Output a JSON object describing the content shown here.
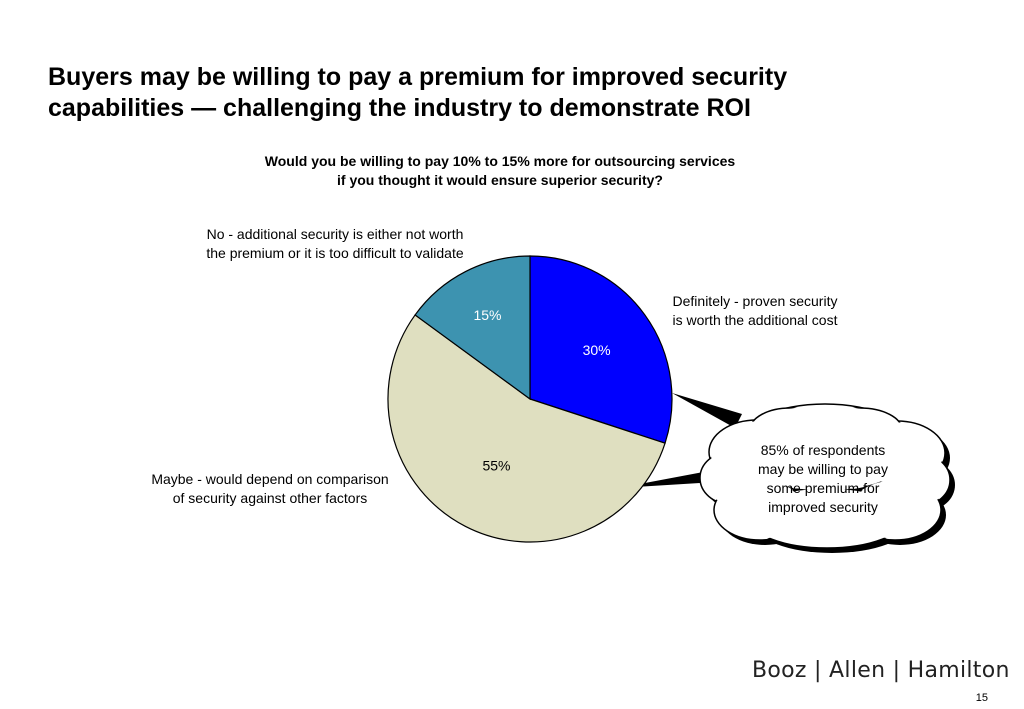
{
  "slide": {
    "title_lines": [
      "Buyers may be willing to pay a premium for improved security",
      "capabilities — challenging the industry to demonstrate ROI"
    ],
    "page_number": "15",
    "logo_text": "Booz | Allen | Hamilton"
  },
  "callout": {
    "lines": [
      "85% of respondents",
      "may be willing to pay",
      "some premium for",
      "improved security"
    ]
  },
  "chart_data": {
    "type": "pie",
    "title_lines": [
      "Would you be willing to pay 10% to 15% more for outsourcing services",
      "if you thought it would ensure superior security?"
    ],
    "unit": "%",
    "slices": [
      {
        "label_lines": [
          "Definitely - proven security",
          "is worth the additional cost"
        ],
        "value": 30,
        "value_label": "30%",
        "color": "#0000ff",
        "text_color": "#ffffff"
      },
      {
        "label_lines": [
          "Maybe - would depend on comparison",
          "of security against other factors"
        ],
        "value": 55,
        "value_label": "55%",
        "color": "#dfdfc0",
        "text_color": "#000000"
      },
      {
        "label_lines": [
          "No - additional security is either not worth",
          "the premium or it is too difficult to validate"
        ],
        "value": 15,
        "value_label": "15%",
        "color": "#3d93b0",
        "text_color": "#ffffff"
      }
    ],
    "start": "12 o'clock",
    "direction": "clockwise"
  }
}
